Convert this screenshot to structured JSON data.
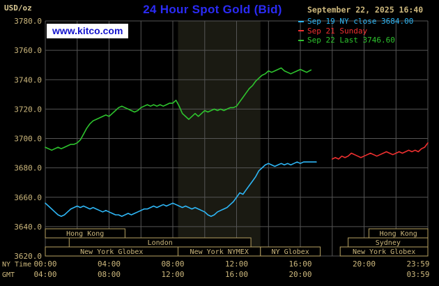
{
  "header": {
    "units": "USD/oz",
    "title": "24 Hour Spot Gold (Bid)",
    "datetime": "September 22, 2025 16:40"
  },
  "watermark": {
    "url": "www.kitco.com"
  },
  "legend": [
    {
      "label": "Sep 19 NY close 3684.00",
      "color": "#2eb6f5"
    },
    {
      "label": "Sep 21 Sunday",
      "color": "#f03030"
    },
    {
      "label": "Sep 22 Last 3746.60",
      "color": "#2ec42e"
    }
  ],
  "axes": {
    "x_label_ny": "NY Time",
    "x_label_gmt": "GMT"
  },
  "colors": {
    "background": "#000000",
    "grid": "#555555",
    "band": "#1a1a12",
    "text_tan": "#cdb87d",
    "session_border": "#b7a262",
    "session_fill": "#000000"
  },
  "sessions": [
    {
      "row": 0,
      "label": "Hong Kong",
      "start": 0,
      "end": 5
    },
    {
      "row": 0,
      "label": "Hong Kong",
      "start": 20.3,
      "end": 24
    },
    {
      "row": 1,
      "label": "London",
      "start": 1.5,
      "end": 12.9
    },
    {
      "row": 1,
      "label": "Sydney",
      "start": 19,
      "end": 24
    },
    {
      "row": 2,
      "label": "New York Globex",
      "start": 0,
      "end": 8.33
    },
    {
      "row": 2,
      "label": "New York NYMEX",
      "start": 8.33,
      "end": 13.5
    },
    {
      "row": 2,
      "label": "NY Globex",
      "start": 13.5,
      "end": 17.25
    },
    {
      "row": 2,
      "label": "New York Globex",
      "start": 18.5,
      "end": 24
    }
  ],
  "chart_data": {
    "type": "line",
    "title": "24 Hour Spot Gold (Bid)",
    "xlabel": "NY Time (hours 00:00-23:59)",
    "ylabel": "USD/oz",
    "xlim": [
      0,
      24
    ],
    "ylim": [
      3620,
      3780
    ],
    "grid": {
      "x_step": 2,
      "y_step": 20
    },
    "band": [
      8.33,
      13.5
    ],
    "y_ticks": [
      {
        "value": 3780,
        "label": "3780.0"
      },
      {
        "value": 3760,
        "label": "3760.0"
      },
      {
        "value": 3740,
        "label": "3740.0"
      },
      {
        "value": 3720,
        "label": "3720.0"
      },
      {
        "value": 3700,
        "label": "3700.0"
      },
      {
        "value": 3680,
        "label": "3680.0"
      },
      {
        "value": 3660,
        "label": "3660.0"
      },
      {
        "value": 3640,
        "label": "3640.0"
      },
      {
        "value": 3620,
        "label": "3620.0"
      }
    ],
    "x_ticks": [
      {
        "hour": 0,
        "ny": "00:00",
        "gmt": "04:00"
      },
      {
        "hour": 4,
        "ny": "04:00",
        "gmt": "08:00"
      },
      {
        "hour": 8,
        "ny": "08:00",
        "gmt": "12:00"
      },
      {
        "hour": 12,
        "ny": "12:00",
        "gmt": "16:00"
      },
      {
        "hour": 16,
        "ny": "16:00",
        "gmt": "20:00"
      },
      {
        "hour": 20,
        "ny": "20:00",
        "gmt": ""
      },
      {
        "hour": 23.983,
        "ny": "23:59",
        "gmt": "03:59"
      }
    ],
    "series": [
      {
        "name": "Sep 19 NY close 3684.00",
        "color": "#2eb6f5",
        "x": [
          0,
          0.2,
          0.4,
          0.6,
          0.8,
          1,
          1.2,
          1.4,
          1.6,
          1.8,
          2,
          2.2,
          2.4,
          2.6,
          2.8,
          3,
          3.2,
          3.4,
          3.6,
          3.8,
          4,
          4.2,
          4.4,
          4.6,
          4.8,
          5,
          5.2,
          5.4,
          5.6,
          5.8,
          6,
          6.2,
          6.4,
          6.6,
          6.8,
          7,
          7.2,
          7.4,
          7.6,
          7.8,
          8,
          8.2,
          8.4,
          8.6,
          8.8,
          9,
          9.2,
          9.4,
          9.6,
          9.8,
          10,
          10.2,
          10.4,
          10.6,
          10.8,
          11,
          11.2,
          11.4,
          11.6,
          11.8,
          12,
          12.2,
          12.4,
          12.6,
          12.8,
          13,
          13.2,
          13.4,
          13.6,
          13.8,
          14,
          14.2,
          14.4,
          14.6,
          14.8,
          15,
          15.2,
          15.4,
          15.6,
          15.8,
          16,
          16.2,
          16.4,
          16.6,
          16.8,
          17
        ],
        "y": [
          3656,
          3654,
          3652,
          3650,
          3648,
          3647,
          3648,
          3650,
          3652,
          3653,
          3654,
          3653,
          3654,
          3653,
          3652,
          3653,
          3652,
          3651,
          3650,
          3651,
          3650,
          3649,
          3648,
          3648,
          3647,
          3648,
          3649,
          3648,
          3649,
          3650,
          3651,
          3652,
          3652,
          3653,
          3654,
          3653,
          3654,
          3655,
          3654,
          3655,
          3656,
          3655,
          3654,
          3653,
          3654,
          3653,
          3652,
          3653,
          3652,
          3651,
          3650,
          3648,
          3647,
          3648,
          3650,
          3651,
          3652,
          3653,
          3655,
          3657,
          3660,
          3663,
          3662,
          3665,
          3668,
          3671,
          3674,
          3678,
          3680,
          3682,
          3683,
          3682,
          3681,
          3682,
          3683,
          3682,
          3683,
          3682,
          3683,
          3684,
          3683,
          3684,
          3684,
          3684,
          3684,
          3684
        ]
      },
      {
        "name": "Sep 21 Sunday",
        "color": "#f03030",
        "x": [
          18,
          18.2,
          18.4,
          18.6,
          18.8,
          19,
          19.2,
          19.4,
          19.6,
          19.8,
          20,
          20.2,
          20.4,
          20.6,
          20.8,
          21,
          21.2,
          21.4,
          21.6,
          21.8,
          22,
          22.2,
          22.4,
          22.6,
          22.8,
          23,
          23.2,
          23.4,
          23.6,
          23.8,
          24
        ],
        "y": [
          3686,
          3687,
          3686,
          3688,
          3687,
          3688,
          3690,
          3689,
          3688,
          3687,
          3688,
          3689,
          3690,
          3689,
          3688,
          3689,
          3690,
          3691,
          3690,
          3689,
          3690,
          3691,
          3690,
          3691,
          3692,
          3691,
          3692,
          3691,
          3693,
          3694,
          3697
        ]
      },
      {
        "name": "Sep 22 Last 3746.60",
        "color": "#2ec42e",
        "x": [
          0,
          0.2,
          0.4,
          0.6,
          0.8,
          1,
          1.2,
          1.4,
          1.6,
          1.8,
          2,
          2.2,
          2.4,
          2.6,
          2.8,
          3,
          3.2,
          3.4,
          3.6,
          3.8,
          4,
          4.2,
          4.4,
          4.6,
          4.8,
          5,
          5.2,
          5.4,
          5.6,
          5.8,
          6,
          6.2,
          6.4,
          6.6,
          6.8,
          7,
          7.2,
          7.4,
          7.6,
          7.8,
          8,
          8.2,
          8.4,
          8.6,
          8.8,
          9,
          9.2,
          9.4,
          9.6,
          9.8,
          10,
          10.2,
          10.4,
          10.6,
          10.8,
          11,
          11.2,
          11.4,
          11.6,
          11.8,
          12,
          12.2,
          12.4,
          12.6,
          12.8,
          13,
          13.2,
          13.4,
          13.6,
          13.8,
          14,
          14.2,
          14.4,
          14.6,
          14.8,
          15,
          15.2,
          15.4,
          15.6,
          15.8,
          16,
          16.2,
          16.4,
          16.67
        ],
        "y": [
          3694,
          3693,
          3692,
          3693,
          3694,
          3693,
          3694,
          3695,
          3696,
          3696,
          3697,
          3699,
          3703,
          3707,
          3710,
          3712,
          3713,
          3714,
          3715,
          3716,
          3715,
          3717,
          3719,
          3721,
          3722,
          3721,
          3720,
          3719,
          3718,
          3719,
          3721,
          3722,
          3723,
          3722,
          3723,
          3722,
          3723,
          3722,
          3723,
          3724,
          3724,
          3726,
          3722,
          3717,
          3715,
          3713,
          3715,
          3717,
          3715,
          3717,
          3719,
          3718,
          3719,
          3720,
          3719,
          3720,
          3719,
          3720,
          3721,
          3721,
          3722,
          3725,
          3728,
          3731,
          3734,
          3736,
          3739,
          3741,
          3743,
          3744,
          3746,
          3745,
          3746,
          3747,
          3748,
          3746,
          3745,
          3744,
          3745,
          3746,
          3747,
          3746,
          3745,
          3746.6
        ]
      }
    ]
  }
}
